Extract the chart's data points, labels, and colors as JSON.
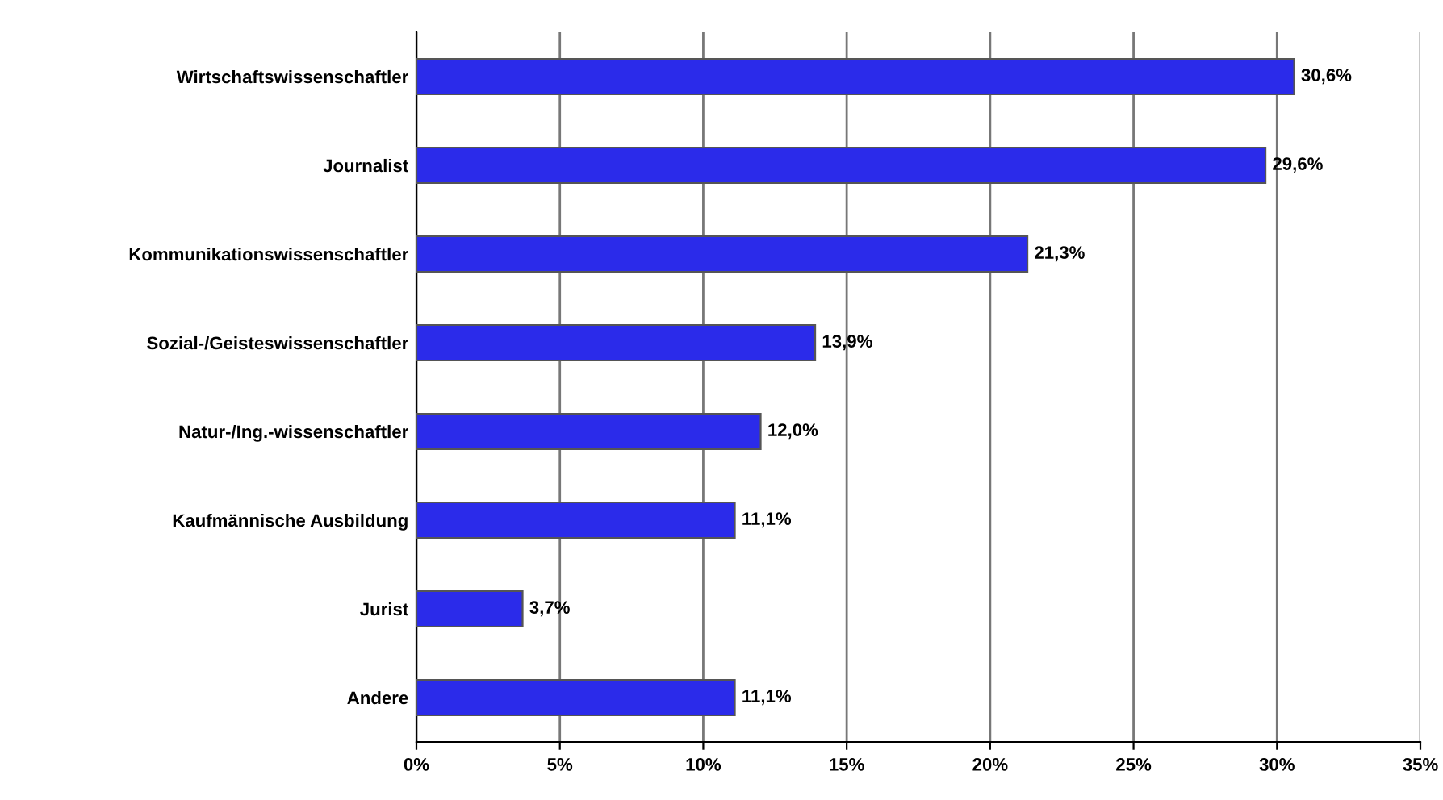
{
  "chart_data": {
    "type": "bar",
    "orientation": "horizontal",
    "categories": [
      "Wirtschaftswissenschaftler",
      "Journalist",
      "Kommunikationswissenschaftler",
      "Sozial-/Geisteswissenschaftler",
      "Natur-/Ing.-wissenschaftler",
      "Kaufmännische Ausbildung",
      "Jurist",
      "Andere"
    ],
    "values": [
      30.6,
      29.6,
      21.3,
      13.9,
      12.0,
      11.1,
      3.7,
      11.1
    ],
    "value_labels": [
      "30,6%",
      "29,6%",
      "21,3%",
      "13,9%",
      "12,0%",
      "11,1%",
      "3,7%",
      "11,1%"
    ],
    "color": "#2b2bea",
    "xlim": [
      0,
      35
    ],
    "xticks": [
      {
        "value": 0,
        "label": "0%"
      },
      {
        "value": 5,
        "label": "5%"
      },
      {
        "value": 10,
        "label": "10%"
      },
      {
        "value": 15,
        "label": "15%"
      },
      {
        "value": 20,
        "label": "20%"
      },
      {
        "value": 25,
        "label": "25%"
      },
      {
        "value": 30,
        "label": "30%"
      },
      {
        "value": 35,
        "label": "35%"
      }
    ],
    "grid": "x"
  }
}
